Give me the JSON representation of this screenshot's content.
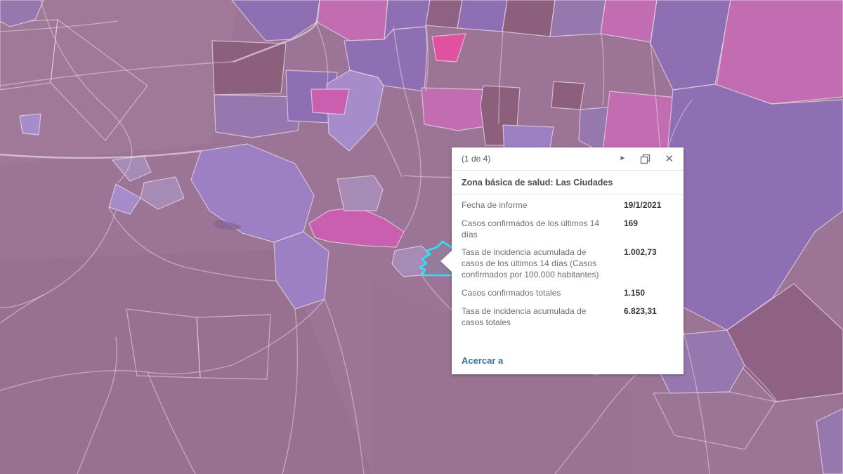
{
  "map": {
    "palette": {
      "base": "#9c7495",
      "light_purple": "#9d80c3",
      "lighter_purple": "#a78ccb",
      "medium_purple": "#8f6fb4",
      "muted_purple": "#9678ae",
      "pink": "#c26cb2",
      "bright_pink": "#ca5fb0",
      "hot_pink": "#e0519f",
      "dark_mauve": "#8c5f7d",
      "darker_mauve": "#8f6285",
      "gray_lavender": "#a58bb5",
      "boundary": "#e9d8e5",
      "road": "#e9d8e5",
      "lake": "#8a6492",
      "highlight": "#2de2f5"
    }
  },
  "popup": {
    "pagination": "(1 de 4)",
    "title": "Zona básica de salud: Las Ciudades",
    "fields": [
      {
        "label": "Fecha de informe",
        "value": "19/1/2021"
      },
      {
        "label": "Casos confirmados de los últimos 14 días",
        "value": "169"
      },
      {
        "label": "Tasa de incidencia acumulada de casos de los últimos 14 días (Casos confirmados por 100.000 habitantes)",
        "value": "1.002,73"
      },
      {
        "label": "Casos confirmados totales",
        "value": "1.150"
      },
      {
        "label": "Tasa de incidencia acumulada de casos totales",
        "value": "6.823,31"
      }
    ],
    "zoom_link": "Acercar a",
    "icons": {
      "next": "►",
      "close": "✕"
    }
  }
}
